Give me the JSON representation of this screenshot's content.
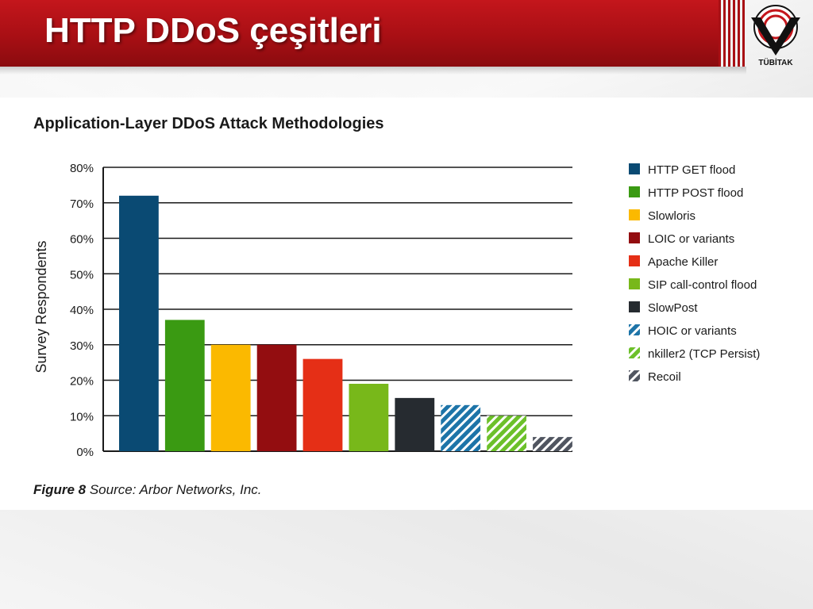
{
  "slide": {
    "title": "HTTP DDoS çeşitleri",
    "logo_text": "TÜBİTAK"
  },
  "colors": {
    "header_red": "#b0141a",
    "http_get": "#0a4a73",
    "http_post": "#3a9a12",
    "slowloris": "#fbb900",
    "loic": "#930d10",
    "apache_killer": "#e52f16",
    "sip": "#78b81a",
    "slowpost": "#262b30",
    "hoic": "#1d74a8",
    "nkiller2": "#6cc02a",
    "recoil": "#505560"
  },
  "chart_data": {
    "type": "bar",
    "title": "Application-Layer DDoS Attack Methodologies",
    "ylabel": "Survey Respondents",
    "xlabel": "",
    "ylim": [
      0,
      80
    ],
    "yticks": [
      "0%",
      "10%",
      "20%",
      "30%",
      "40%",
      "50%",
      "60%",
      "70%",
      "80%"
    ],
    "grid": true,
    "legend_position": "right",
    "caption_bold": "Figure 8",
    "caption_rest": " Source: Arbor Networks, Inc.",
    "categories": [
      "HTTP GET flood",
      "HTTP POST flood",
      "Slowloris",
      "LOIC or variants",
      "Apache Killer",
      "SIP call-control flood",
      "SlowPost",
      "HOIC or variants",
      "nkiller2 (TCP Persist)",
      "Recoil"
    ],
    "values": [
      72,
      37,
      30,
      30,
      26,
      19,
      15,
      13,
      10,
      4
    ],
    "colors": [
      "#0a4a73",
      "#3a9a12",
      "#fbb900",
      "#930d10",
      "#e52f16",
      "#78b81a",
      "#262b30",
      "#1d74a8",
      "#6cc02a",
      "#505560"
    ],
    "hatched": [
      false,
      false,
      false,
      false,
      false,
      false,
      false,
      true,
      true,
      true
    ]
  }
}
